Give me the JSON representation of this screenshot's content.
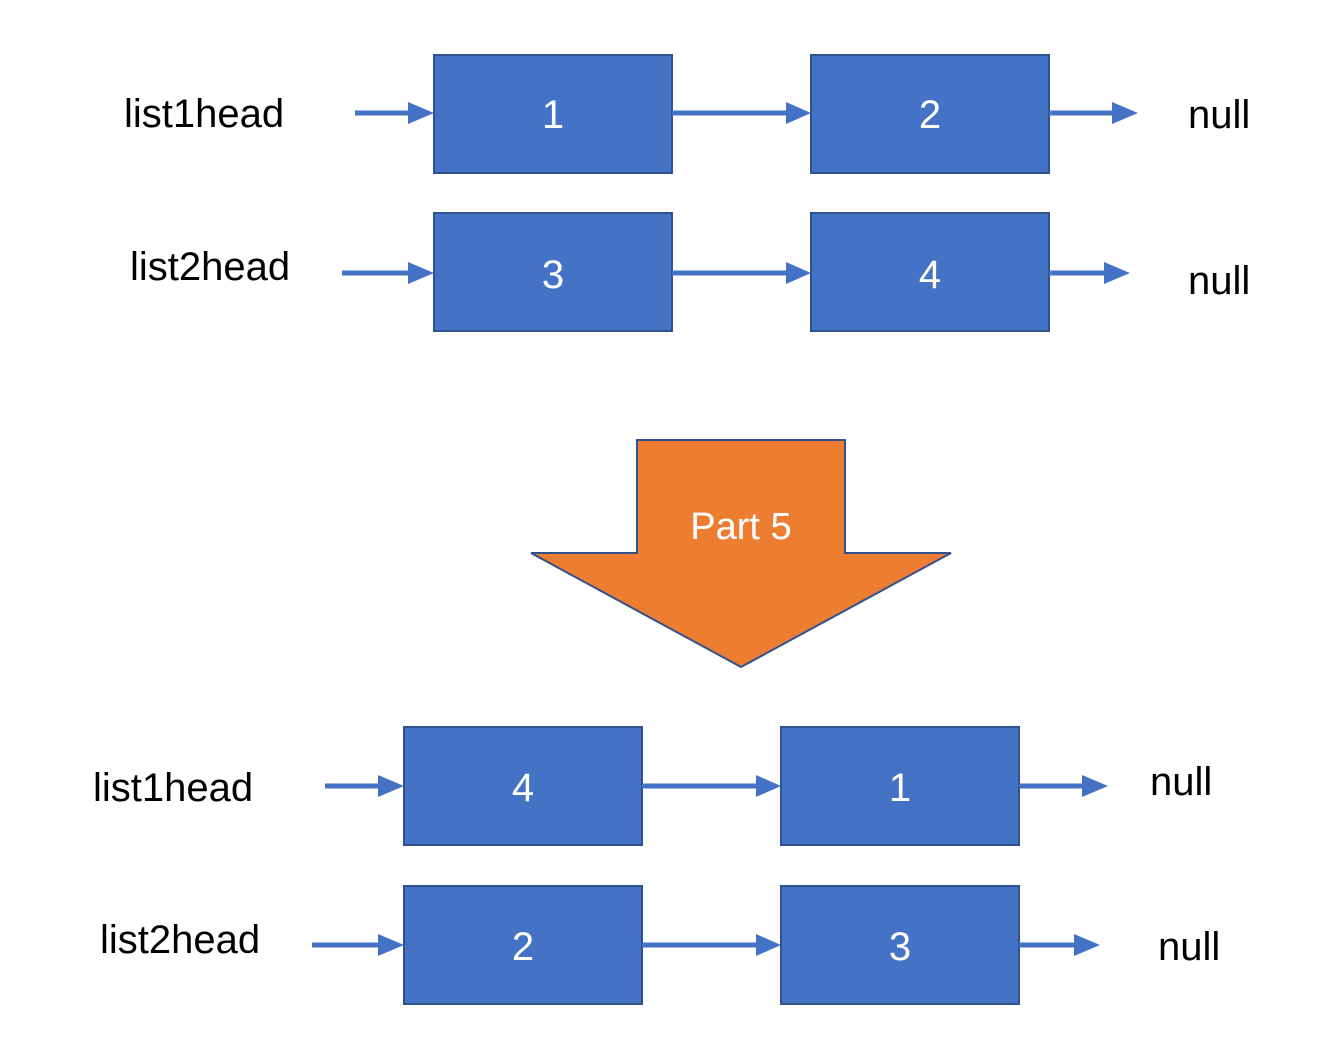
{
  "before": {
    "list1": {
      "head_label": "list1head",
      "nodes": [
        "1",
        "2"
      ],
      "tail_label": "null"
    },
    "list2": {
      "head_label": "list2head",
      "nodes": [
        "3",
        "4"
      ],
      "tail_label": "null"
    }
  },
  "transition": {
    "label": "Part 5"
  },
  "after": {
    "list1": {
      "head_label": "list1head",
      "nodes": [
        "4",
        "1"
      ],
      "tail_label": "null"
    },
    "list2": {
      "head_label": "list2head",
      "nodes": [
        "2",
        "3"
      ],
      "tail_label": "null"
    }
  },
  "colors": {
    "node_fill": "#4472c4",
    "node_border": "#2f528f",
    "arrow": "#4472c4",
    "transition_fill": "#ed7d31",
    "node_text": "#ffffff",
    "label_text": "#000000"
  }
}
